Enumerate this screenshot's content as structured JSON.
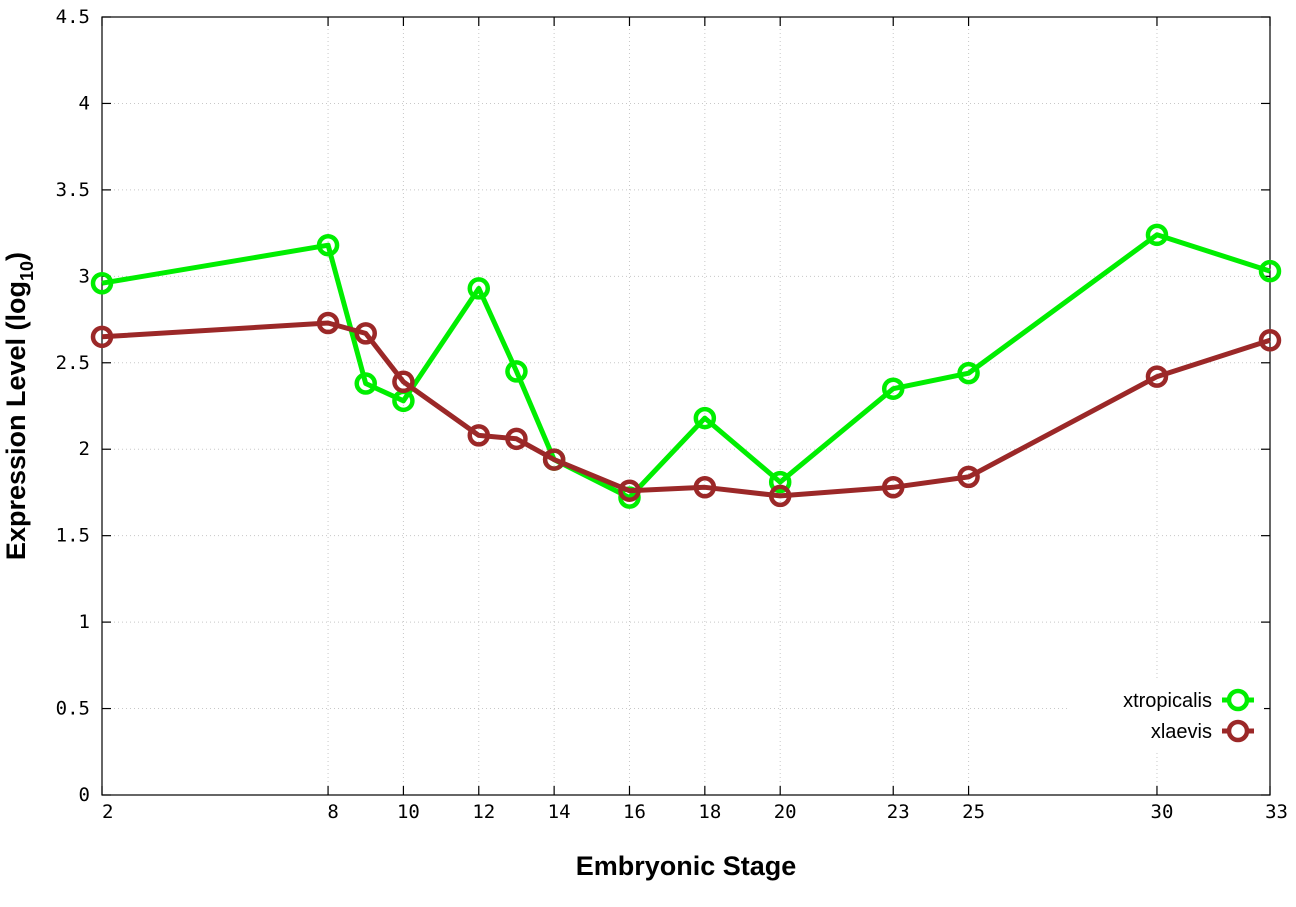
{
  "chart_data": {
    "type": "line",
    "title": "",
    "xlabel": "Embryonic Stage",
    "ylabel": "Expression Level (log",
    "ylabel_subscript": "10",
    "ylabel_suffix": ")",
    "x": [
      2,
      8,
      9,
      10,
      12,
      13,
      14,
      16,
      18,
      20,
      23,
      25,
      30,
      33
    ],
    "x_ticks": [
      "2",
      "8",
      "10",
      "12",
      "14",
      "16",
      "18",
      "20",
      "23",
      "25",
      "30",
      "33"
    ],
    "x_tick_values": [
      2,
      8,
      10,
      12,
      14,
      16,
      18,
      20,
      23,
      25,
      30,
      33
    ],
    "y_ticks": [
      "0",
      "0.5",
      "1",
      "1.5",
      "2",
      "2.5",
      "3",
      "3.5",
      "4",
      "4.5"
    ],
    "y_tick_values": [
      0,
      0.5,
      1,
      1.5,
      2,
      2.5,
      3,
      3.5,
      4,
      4.5
    ],
    "xlim": [
      2,
      33
    ],
    "ylim": [
      0,
      4.5
    ],
    "grid": true,
    "legend_position": "bottom-right",
    "series": [
      {
        "name": "xtropicalis",
        "color": "#00ee00",
        "values": [
          2.96,
          3.18,
          2.38,
          2.28,
          2.93,
          2.45,
          1.94,
          1.72,
          2.18,
          1.81,
          2.35,
          2.44,
          3.24,
          3.03
        ]
      },
      {
        "name": "xlaevis",
        "color": "#9b2828",
        "values": [
          2.65,
          2.73,
          2.67,
          2.39,
          2.08,
          2.06,
          1.94,
          1.76,
          1.78,
          1.73,
          1.78,
          1.84,
          2.42,
          2.63
        ]
      }
    ]
  }
}
